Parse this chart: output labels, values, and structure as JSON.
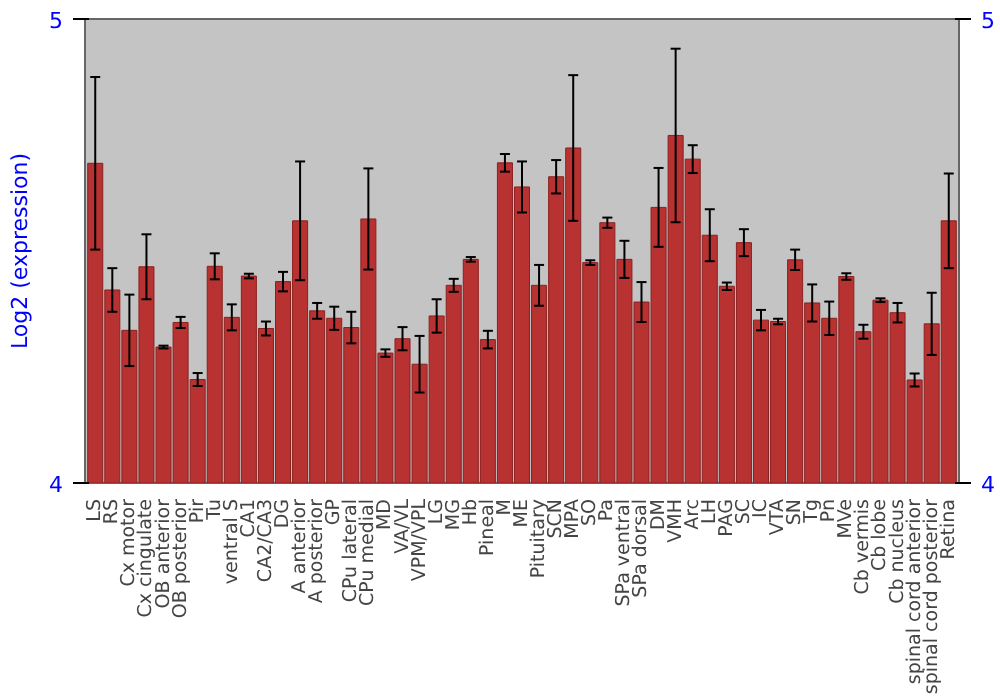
{
  "chart_data": {
    "type": "bar",
    "ylabel": "Log2 (expression)",
    "categories": [
      "LS",
      "RS",
      "Cx motor",
      "Cx cingulate",
      "OB anterior",
      "OB posterior",
      "Pir",
      "Tu",
      "ventral S",
      "CA1",
      "CA2/CA3",
      "DG",
      "A anterior",
      "A posterior",
      "GP",
      "CPu lateral",
      "CPu medial",
      "MD",
      "VA/VL",
      "VPM/VPL",
      "LG",
      "MG",
      "Hb",
      "Pineal",
      "M",
      "ME",
      "Pituitary",
      "SCN",
      "MPA",
      "SO",
      "Pa",
      "SPa ventral",
      "SPa dorsal",
      "DM",
      "VMH",
      "Arc",
      "LH",
      "PAG",
      "SC",
      "IC",
      "VTA",
      "SN",
      "Tg",
      "Pn",
      "MVe",
      "Cb vermis",
      "Cb lobe",
      "Cb nucleus",
      "spinal cord anterior",
      "spinal cord posterior",
      "Retina"
    ],
    "series": [
      {
        "color": "#b83232",
        "values": [
          4.689,
          4.416,
          4.329,
          4.466,
          4.293,
          4.346,
          4.223,
          4.467,
          4.357,
          4.446,
          4.333,
          4.434,
          4.565,
          4.371,
          4.355,
          4.335,
          4.569,
          4.28,
          4.311,
          4.256,
          4.36,
          4.426,
          4.482,
          4.309,
          4.69,
          4.638,
          4.426,
          4.66,
          4.722,
          4.475,
          4.561,
          4.482,
          4.39,
          4.594,
          4.749,
          4.698,
          4.534,
          4.424,
          4.518,
          4.351,
          4.348,
          4.481,
          4.388,
          4.355,
          4.445,
          4.326,
          4.394,
          4.367,
          4.222,
          4.343,
          4.565
        ],
        "errors": [
          0.186,
          0.047,
          0.077,
          0.07,
          0.003,
          0.012,
          0.014,
          0.028,
          0.028,
          0.005,
          0.015,
          0.021,
          0.128,
          0.017,
          0.025,
          0.034,
          0.109,
          0.008,
          0.025,
          0.061,
          0.036,
          0.014,
          0.005,
          0.019,
          0.019,
          0.055,
          0.044,
          0.036,
          0.157,
          0.005,
          0.011,
          0.04,
          0.043,
          0.085,
          0.187,
          0.03,
          0.056,
          0.008,
          0.029,
          0.022,
          0.006,
          0.022,
          0.04,
          0.036,
          0.007,
          0.015,
          0.004,
          0.021,
          0.014,
          0.067,
          0.102
        ]
      }
    ],
    "ylim": [
      4,
      5
    ],
    "yticks": [
      4,
      5
    ],
    "y2lim": [
      4,
      5
    ],
    "y2ticks": [
      4,
      5
    ],
    "grid": false
  }
}
